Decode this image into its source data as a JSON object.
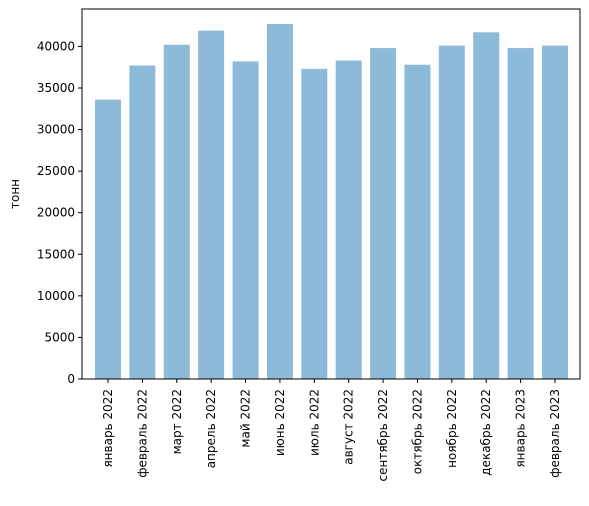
{
  "chart_data": {
    "type": "bar",
    "title": "",
    "xlabel": "",
    "ylabel": "тонн",
    "ylim": [
      0,
      44500
    ],
    "yticks": [
      0,
      5000,
      10000,
      15000,
      20000,
      25000,
      30000,
      35000,
      40000
    ],
    "ytick_labels": [
      "0",
      "5000",
      "10000",
      "15000",
      "20000",
      "25000",
      "30000",
      "35000",
      "40000"
    ],
    "categories": [
      "январь 2022",
      "февраль 2022",
      "март 2022",
      "апрель 2022",
      "май 2022",
      "июнь 2022",
      "июль 2022",
      "август 2022",
      "сентябрь 2022",
      "октябрь 2022",
      "ноябрь 2022",
      "декабрь 2022",
      "январь 2023",
      "февраль 2023"
    ],
    "values": [
      33600,
      37700,
      40200,
      41900,
      38200,
      42700,
      37300,
      38300,
      39800,
      37800,
      40100,
      41700,
      39800,
      40100
    ],
    "color": "#8dbad9",
    "grid": false,
    "legend": "none"
  }
}
